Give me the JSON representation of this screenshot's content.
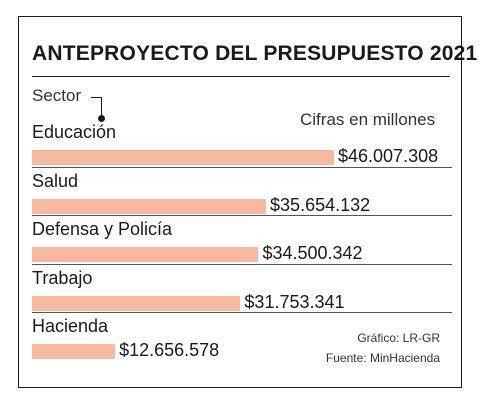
{
  "header": {
    "units": "Cifras en millones",
    "sector_label": "Sector"
  },
  "footer": {
    "credit": "Gráfico: LR-GR",
    "source": "Fuente: MinHacienda"
  },
  "chart_data": {
    "type": "bar",
    "orientation": "horizontal",
    "title": "ANTEPROYECTO DEL PRESUPUESTO 2021",
    "categories": [
      "Educación",
      "Salud",
      "Defensa y Policía",
      "Trabajo",
      "Hacienda"
    ],
    "values": [
      46007308,
      35654132,
      34500342,
      31753341,
      12656578
    ],
    "value_labels": [
      "$46.007.308",
      "$35.654.132",
      "$34.500.342",
      "$31.753.341",
      "$12.656.578"
    ],
    "bar_color": "#f6b9a0",
    "grid": false,
    "legend": "none"
  }
}
